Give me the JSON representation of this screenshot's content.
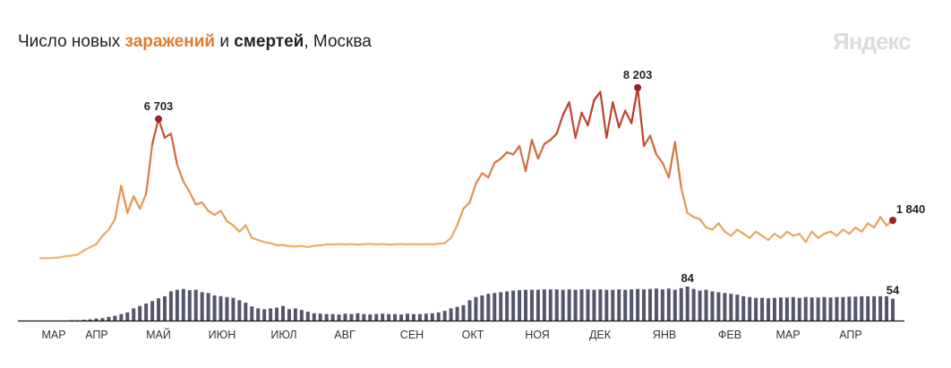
{
  "header": {
    "title_part1": "Число новых ",
    "title_infections": "заражений",
    "title_part2": " и ",
    "title_deaths": "смертей",
    "title_part3": ", Москва",
    "brand": "Яндекс"
  },
  "chart_data": [
    {
      "type": "line",
      "series_label": "заражений",
      "note_values_every_days": 3,
      "values": [
        20,
        30,
        40,
        60,
        120,
        150,
        200,
        400,
        550,
        700,
        1100,
        1400,
        1900,
        3500,
        2200,
        3000,
        2400,
        3100,
        5500,
        6703,
        5800,
        6000,
        4500,
        3700,
        3200,
        2600,
        2700,
        2300,
        2100,
        2300,
        1800,
        1600,
        1300,
        1600,
        1000,
        900,
        800,
        750,
        650,
        660,
        600,
        590,
        610,
        560,
        620,
        640,
        690,
        690,
        700,
        690,
        700,
        680,
        700,
        710,
        690,
        700,
        680,
        690,
        700,
        690,
        700,
        690,
        700,
        690,
        720,
        750,
        1000,
        1600,
        2400,
        2700,
        3600,
        4100,
        3900,
        4600,
        4800,
        5100,
        5000,
        5400,
        4200,
        5700,
        4800,
        5500,
        5700,
        6000,
        6900,
        7500,
        5800,
        7000,
        6400,
        7600,
        8000,
        5800,
        7500,
        6300,
        7100,
        6500,
        8203,
        5400,
        5900,
        5000,
        4600,
        3900,
        5600,
        3400,
        2200,
        2000,
        1900,
        1500,
        1400,
        1700,
        1300,
        1100,
        1400,
        1200,
        1000,
        1300,
        1100,
        900,
        1200,
        1000,
        1300,
        1100,
        1200,
        800,
        1300,
        1000,
        1200,
        1300,
        1100,
        1400,
        1200,
        1500,
        1300,
        1700,
        1500,
        2000,
        1600,
        1840
      ],
      "annotations": [
        {
          "index": 19,
          "label": "6 703"
        },
        {
          "index": 96,
          "label": "8 203"
        },
        {
          "index": 137,
          "label": "1 840"
        }
      ],
      "colors": {
        "low": "#e8b86c",
        "mid": "#e08a4a",
        "high": "#b5332a",
        "marker": "#9b2226"
      }
    },
    {
      "type": "bar",
      "series_label": "смертей",
      "values": [
        0,
        0,
        0,
        0,
        0,
        1,
        1,
        2,
        3,
        5,
        6,
        9,
        12,
        16,
        20,
        30,
        36,
        42,
        48,
        55,
        60,
        72,
        76,
        78,
        75,
        76,
        70,
        68,
        62,
        60,
        58,
        56,
        50,
        44,
        35,
        30,
        28,
        30,
        32,
        36,
        28,
        30,
        26,
        22,
        18,
        17,
        16,
        16,
        15,
        17,
        16,
        18,
        16,
        15,
        16,
        17,
        16,
        16,
        15,
        17,
        16,
        16,
        17,
        18,
        20,
        24,
        30,
        34,
        38,
        50,
        58,
        62,
        66,
        68,
        70,
        72,
        74,
        75,
        76,
        76,
        76,
        77,
        77,
        77,
        76,
        77,
        76,
        77,
        77,
        76,
        77,
        76,
        76,
        77,
        76,
        77,
        78,
        77,
        78,
        79,
        77,
        79,
        76,
        80,
        84,
        78,
        74,
        76,
        72,
        70,
        68,
        66,
        64,
        60,
        58,
        56,
        56,
        55,
        56,
        57,
        57,
        58,
        56,
        58,
        57,
        57,
        58,
        57,
        58,
        58,
        59,
        59,
        60,
        60,
        60,
        60,
        60,
        54
      ],
      "annotations": [
        {
          "index": 104,
          "label": "84"
        },
        {
          "index": 137,
          "label": "54"
        }
      ],
      "color": "#55556e"
    }
  ],
  "x_axis": {
    "months": [
      "МАР",
      "АПР",
      "МАЙ",
      "ИЮН",
      "ИЮЛ",
      "АВГ",
      "СЕН",
      "ОКТ",
      "НОЯ",
      "ДЕК",
      "ЯНВ",
      "ФЕВ",
      "МАР",
      "АПР"
    ]
  }
}
